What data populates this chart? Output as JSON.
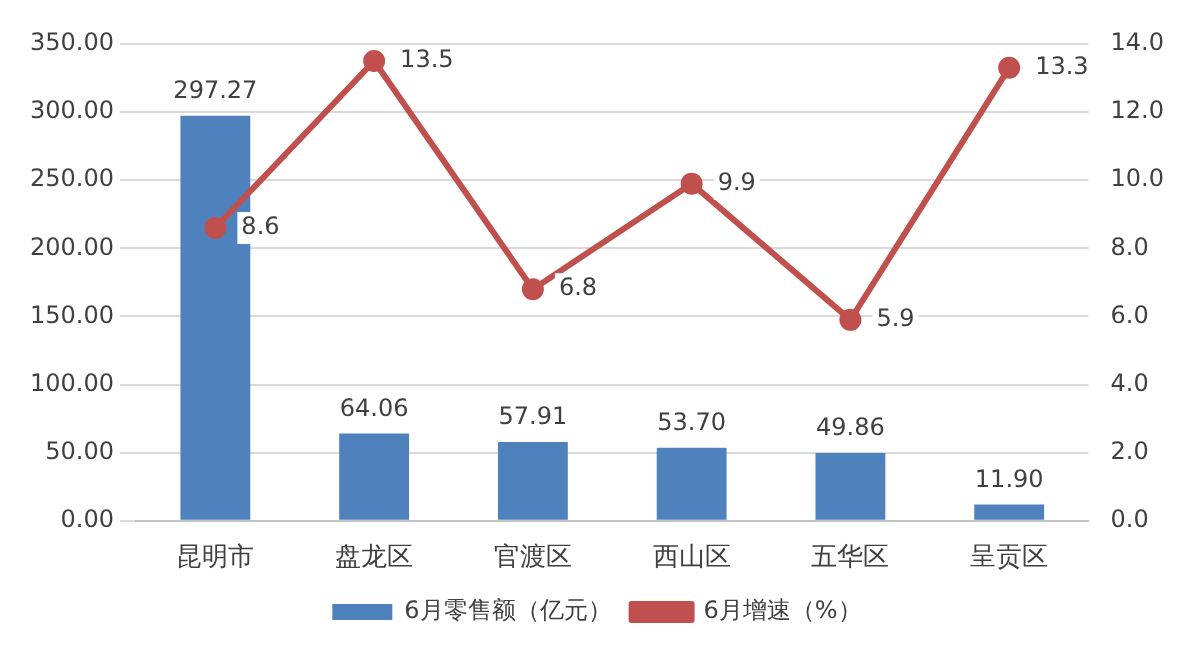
{
  "chart_data": {
    "type": "bar",
    "categories": [
      "昆明市",
      "盘龙区",
      "官渡区",
      "西山区",
      "五华区",
      "呈贡区"
    ],
    "series": [
      {
        "name": "6月零售额（亿元）",
        "color": "#4f81bd",
        "values": [
          297.27,
          64.06,
          57.91,
          53.7,
          49.86,
          11.9
        ],
        "value_labels": [
          "297.27",
          "64.06",
          "57.91",
          "53.70",
          "49.86",
          "11.90"
        ]
      },
      {
        "name": "6月增速（%）",
        "type": "line",
        "axis": "y2",
        "color": "#c0504d",
        "values": [
          8.6,
          13.5,
          6.8,
          9.9,
          5.9,
          13.3
        ],
        "value_labels": [
          "8.6",
          "13.5",
          "6.8",
          "9.9",
          "5.9",
          "13.3"
        ]
      }
    ],
    "ylim": [
      0,
      350
    ],
    "yticks": [
      {
        "value": 0,
        "label": "0.00"
      },
      {
        "value": 50,
        "label": "50.00"
      },
      {
        "value": 100,
        "label": "100.00"
      },
      {
        "value": 150,
        "label": "150.00"
      },
      {
        "value": 200,
        "label": "200.00"
      },
      {
        "value": 250,
        "label": "250.00"
      },
      {
        "value": 300,
        "label": "300.00"
      },
      {
        "value": 350,
        "label": "350.00"
      }
    ],
    "y2lim": [
      0,
      14
    ],
    "y2ticks": [
      {
        "value": 0,
        "label": "0.0"
      },
      {
        "value": 2,
        "label": "2.0"
      },
      {
        "value": 4,
        "label": "4.0"
      },
      {
        "value": 6,
        "label": "6.0"
      },
      {
        "value": 8,
        "label": "8.0"
      },
      {
        "value": 10,
        "label": "10.0"
      },
      {
        "value": 12,
        "label": "12.0"
      },
      {
        "value": 14,
        "label": "14.0"
      }
    ],
    "grid": "y",
    "legend": "bottom",
    "marker": "circle",
    "line_style": "solid"
  }
}
